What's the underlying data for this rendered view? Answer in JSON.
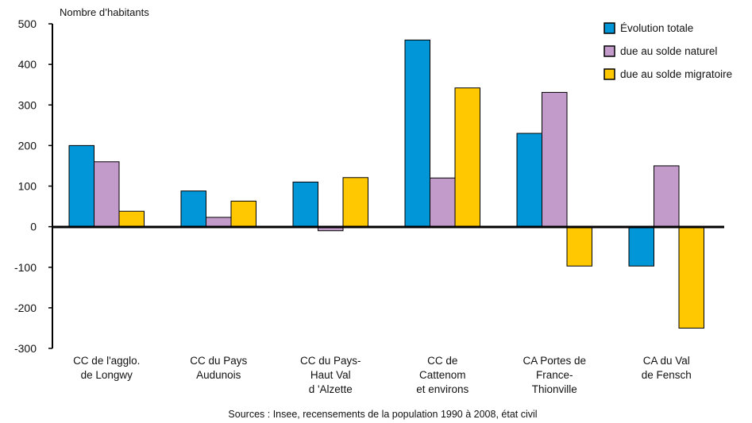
{
  "chart_data": {
    "type": "bar",
    "ylabel": "Nombre d’habitants",
    "ylim": [
      -300,
      500
    ],
    "yticks": [
      500,
      400,
      300,
      200,
      100,
      0,
      -100,
      -200,
      -300
    ],
    "grid": false,
    "legend_position": "top-right",
    "categories": [
      [
        "CC de l'agglo.",
        "de Longwy"
      ],
      [
        "CC du Pays",
        "Audunois"
      ],
      [
        "CC du Pays-",
        "Haut Val",
        "d 'Alzette"
      ],
      [
        "CC de",
        "Cattenom",
        "et environs"
      ],
      [
        "CA Portes de",
        "France-",
        "Thionville"
      ],
      [
        "CA du Val",
        "de Fensch"
      ]
    ],
    "series": [
      {
        "name": "Évolution totale",
        "color": "#0096d8",
        "values": [
          200,
          88,
          110,
          460,
          230,
          -97
        ]
      },
      {
        "name": "due au solde naturel",
        "color": "#c39bcb",
        "values": [
          160,
          23,
          -10,
          120,
          331,
          150
        ]
      },
      {
        "name": "due au solde migratoire",
        "color": "#ffc800",
        "values": [
          38,
          63,
          121,
          342,
          -97,
          -250
        ]
      }
    ],
    "source": "Sources : Insee, recensements de la population 1990 à 2008, état civil"
  }
}
